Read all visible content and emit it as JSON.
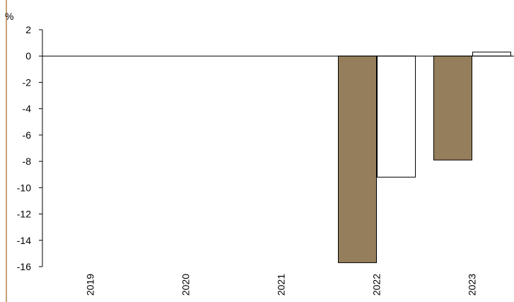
{
  "chart_data": {
    "type": "bar",
    "unit_label": "%",
    "categories": [
      "2019",
      "2020",
      "2021",
      "2022",
      "2023"
    ],
    "series": [
      {
        "color": "#957e5b",
        "outline": "#000000",
        "values": [
          null,
          null,
          null,
          -15.7,
          -7.9
        ]
      },
      {
        "color": "#ffffff",
        "outline": "#000000",
        "values": [
          null,
          null,
          null,
          -9.2,
          0.3
        ]
      }
    ],
    "ylim": [
      -16,
      2
    ],
    "yticks": [
      2,
      0,
      -2,
      -4,
      -6,
      -8,
      -10,
      -12,
      -14,
      -16
    ],
    "grid": false,
    "legend": "none"
  }
}
